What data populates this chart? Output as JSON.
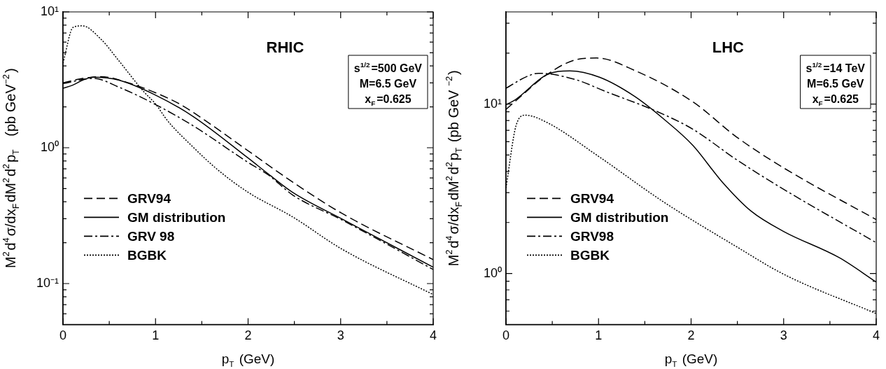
{
  "chart_data": [
    {
      "type": "line",
      "title": "RHIC",
      "xlabel": "p$_{T}$ (GeV)",
      "ylabel": "M$^{2}$d$^{4}$σ/dx$_{F}$dM$^{2}$d$^{2}$p$_{T}$   (pb GeV$^{−2}$)",
      "annotations": [
        "s$^{1/2}$=500 GeV",
        "M=6.5 GeV",
        "x$_{F}$=0.625"
      ],
      "log": "y",
      "grid": false,
      "legend": "bottom left",
      "xlim": [
        0,
        4
      ],
      "xticks": [
        0,
        {
          "value": 0.5,
          "label": null
        },
        1,
        {
          "value": 1.5,
          "label": null
        },
        2,
        {
          "value": 2.5,
          "label": null
        },
        3,
        {
          "value": 3.5,
          "label": null
        },
        4
      ],
      "ylim": [
        0.05,
        10
      ],
      "yticks": [
        {
          "value": 0.06,
          "label": null
        },
        {
          "value": 0.07,
          "label": null
        },
        {
          "value": 0.08,
          "label": null
        },
        {
          "value": 0.09,
          "label": null
        },
        {
          "value": 0.1,
          "label": "10⁻¹"
        },
        {
          "value": 0.2,
          "label": null
        },
        {
          "value": 0.3,
          "label": null
        },
        {
          "value": 0.4,
          "label": null
        },
        {
          "value": 0.5,
          "label": null
        },
        {
          "value": 0.6,
          "label": null
        },
        {
          "value": 0.7,
          "label": null
        },
        {
          "value": 0.8,
          "label": null
        },
        {
          "value": 0.9,
          "label": null
        },
        {
          "value": 1,
          "label": "10⁰"
        },
        {
          "value": 2,
          "label": null
        },
        {
          "value": 3,
          "label": null
        },
        {
          "value": 4,
          "label": null
        },
        {
          "value": 5,
          "label": null
        },
        {
          "value": 6,
          "label": null
        },
        {
          "value": 7,
          "label": null
        },
        {
          "value": 8,
          "label": null
        },
        {
          "value": 9,
          "label": null
        },
        {
          "value": 10,
          "label": "10¹"
        }
      ],
      "series": [
        {
          "name": "GRV94",
          "color": "#000000",
          "line_style": "dashed",
          "x": [
            0,
            0.17,
            0.41,
            0.73,
            1,
            1.27,
            1.54,
            2,
            2.48,
            3.01,
            4
          ],
          "values": [
            3.0,
            3.2,
            3.34,
            2.97,
            2.54,
            2.08,
            1.58,
            0.95,
            0.56,
            0.33,
            0.15
          ]
        },
        {
          "name": "GM distribution",
          "color": "#000000",
          "line_style": "solid",
          "x": [
            0,
            0.1,
            0.22,
            0.33,
            0.6,
            1,
            1.4,
            2,
            2.22,
            2.48,
            3.01,
            4
          ],
          "values": [
            2.74,
            2.88,
            3.16,
            3.31,
            3.15,
            2.44,
            1.71,
            0.84,
            0.64,
            0.47,
            0.3,
            0.132
          ]
        },
        {
          "name": "GRV 98",
          "color": "#000000",
          "line_style": "dashdot",
          "x": [
            0,
            0.33,
            0.6,
            1,
            1.4,
            2,
            2.22,
            2.48,
            3.01,
            4
          ],
          "values": [
            2.97,
            3.24,
            2.8,
            2.08,
            1.46,
            0.78,
            0.63,
            0.45,
            0.295,
            0.127
          ]
        },
        {
          "name": "BGBK",
          "color": "#000000",
          "line_style": "dotted",
          "x": [
            0,
            0.11,
            0.21,
            0.41,
            0.6,
            0.87,
            1,
            1.13,
            1.4,
            1.67,
            2,
            2.48,
            3.01,
            4
          ],
          "values": [
            4.2,
            7.7,
            7.9,
            6.3,
            4.4,
            2.6,
            2.1,
            1.58,
            1.02,
            0.69,
            0.47,
            0.31,
            0.18,
            0.083
          ]
        }
      ]
    },
    {
      "type": "line",
      "title": "LHC",
      "xlabel": "p$_{T}$ (GeV)",
      "ylabel": "M$^{2}$d$^{4}$σ/dx$_{F}$dM$^{2}$d$^{2}$p$_{T}$ (pb GeV $^{−2}$)",
      "annotations": [
        "s$^{1/2}$=14 TeV",
        "M=6.5 GeV",
        "x$_{F}$=0.625"
      ],
      "log": "y",
      "grid": false,
      "legend": "bottom left",
      "xlim": [
        0,
        4
      ],
      "xticks": [
        0,
        {
          "value": 0.5,
          "label": null
        },
        1,
        {
          "value": 1.5,
          "label": null
        },
        2,
        {
          "value": 2.5,
          "label": null
        },
        3,
        {
          "value": 3.5,
          "label": null
        },
        4
      ],
      "ylim": [
        0.5,
        35
      ],
      "yticks": [
        {
          "value": 0.6,
          "label": null
        },
        {
          "value": 0.7,
          "label": null
        },
        {
          "value": 0.8,
          "label": null
        },
        {
          "value": 0.9,
          "label": null
        },
        {
          "value": 1,
          "label": "10⁰"
        },
        {
          "value": 2,
          "label": null
        },
        {
          "value": 3,
          "label": null
        },
        {
          "value": 4,
          "label": null
        },
        {
          "value": 5,
          "label": null
        },
        {
          "value": 6,
          "label": null
        },
        {
          "value": 7,
          "label": null
        },
        {
          "value": 8,
          "label": null
        },
        {
          "value": 9,
          "label": null
        },
        {
          "value": 10,
          "label": "10¹"
        },
        {
          "value": 20,
          "label": null
        },
        {
          "value": 30,
          "label": null
        }
      ],
      "series": [
        {
          "name": "GRV94",
          "color": "#000000",
          "line_style": "dashed",
          "x": [
            0,
            0.11,
            0.44,
            0.76,
            0.98,
            1.39,
            2.02,
            2.49,
            3,
            4
          ],
          "values": [
            9.3,
            10.5,
            14.9,
            18.3,
            18.7,
            15.8,
            10.3,
            6.4,
            4.2,
            2.08
          ]
        },
        {
          "name": "GM distribution",
          "color": "#000000",
          "line_style": "solid",
          "x": [
            0,
            0.11,
            0.44,
            0.69,
            1.01,
            1.39,
            1.7,
            2.02,
            2.33,
            2.65,
            3,
            3.6,
            4
          ],
          "values": [
            9.9,
            10.7,
            14.9,
            15.7,
            14.4,
            11.1,
            8.2,
            5.7,
            3.5,
            2.33,
            1.77,
            1.24,
            0.89
          ]
        },
        {
          "name": "GRV98",
          "color": "#000000",
          "line_style": "dashdot",
          "x": [
            0,
            0.22,
            0.35,
            0.76,
            1.07,
            1.64,
            2.02,
            2.49,
            3,
            4
          ],
          "values": [
            12.4,
            14.5,
            15.2,
            13.9,
            11.9,
            9.0,
            7.1,
            4.7,
            3.14,
            1.52
          ]
        },
        {
          "name": "BGBK",
          "color": "#000000",
          "line_style": "dotted",
          "x": [
            0,
            0.11,
            0.21,
            0.44,
            0.98,
            1.7,
            2.49,
            3,
            4
          ],
          "values": [
            3.2,
            7.5,
            8.6,
            7.8,
            5.0,
            2.65,
            1.44,
            0.99,
            0.58
          ]
        }
      ]
    }
  ]
}
